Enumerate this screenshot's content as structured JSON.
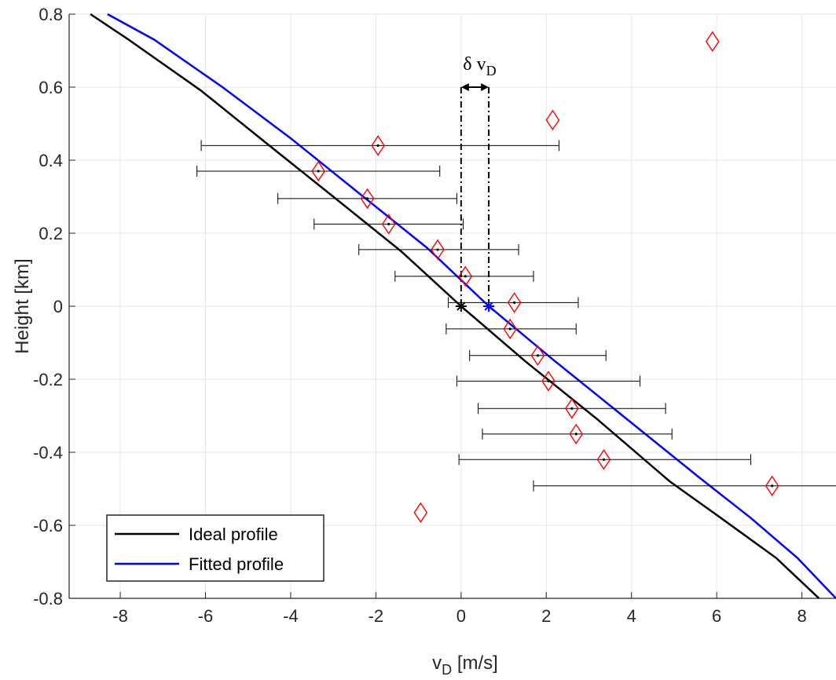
{
  "chart_data": {
    "type": "scatter",
    "xlabel": "v",
    "xlabel_sub": "D",
    "xlabel_unit": " [m/s]",
    "ylabel": "Height [km]",
    "xlim": [
      -9.2,
      8.8
    ],
    "ylim": [
      -0.8,
      0.8
    ],
    "xticks": [
      -8,
      -6,
      -4,
      -2,
      0,
      2,
      4,
      6,
      8
    ],
    "yticks": [
      -0.8,
      -0.6,
      -0.4,
      -0.2,
      0,
      0.2,
      0.4,
      0.6,
      0.8
    ],
    "grid": true,
    "legend_position": "bottom-left",
    "colors": {
      "ideal": "#000000",
      "fitted": "#0000ff",
      "marker": "#ff0000",
      "errorbar": "#000000",
      "grid": "#e6e6e6"
    },
    "series": [
      {
        "name": "Ideal profile",
        "x": [
          -8.7,
          -7.8,
          -6.1,
          -4.5,
          -3.0,
          -1.4,
          0.0,
          1.5,
          3.2,
          4.9,
          6.1,
          7.4,
          8.4
        ],
        "y": [
          0.8,
          0.73,
          0.59,
          0.44,
          0.3,
          0.15,
          0.0,
          -0.15,
          -0.31,
          -0.48,
          -0.58,
          -0.69,
          -0.8
        ]
      },
      {
        "name": "Fitted profile",
        "x": [
          -8.3,
          -7.2,
          -5.6,
          -4.0,
          -2.4,
          -0.8,
          0.65,
          2.2,
          3.9,
          5.6,
          6.8,
          7.9,
          8.8
        ],
        "y": [
          0.8,
          0.73,
          0.6,
          0.46,
          0.31,
          0.16,
          0.0,
          -0.15,
          -0.31,
          -0.47,
          -0.58,
          -0.69,
          -0.8
        ]
      }
    ],
    "measurements": [
      {
        "x": -1.95,
        "y": 0.44,
        "xerr_low": -6.1,
        "xerr_high": 2.3
      },
      {
        "x": -3.35,
        "y": 0.37,
        "xerr_low": -6.2,
        "xerr_high": -0.5
      },
      {
        "x": -2.2,
        "y": 0.295,
        "xerr_low": -4.3,
        "xerr_high": -0.1
      },
      {
        "x": -1.7,
        "y": 0.225,
        "xerr_low": -3.45,
        "xerr_high": 0.05
      },
      {
        "x": -0.55,
        "y": 0.155,
        "xerr_low": -2.4,
        "xerr_high": 1.35
      },
      {
        "x": 0.1,
        "y": 0.082,
        "xerr_low": -1.55,
        "xerr_high": 1.7
      },
      {
        "x": 1.25,
        "y": 0.01,
        "xerr_low": -0.3,
        "xerr_high": 2.75
      },
      {
        "x": 1.15,
        "y": -0.062,
        "xerr_low": -0.35,
        "xerr_high": 2.7
      },
      {
        "x": 1.8,
        "y": -0.135,
        "xerr_low": 0.2,
        "xerr_high": 3.4
      },
      {
        "x": 2.05,
        "y": -0.205,
        "xerr_low": -0.1,
        "xerr_high": 4.2
      },
      {
        "x": 2.6,
        "y": -0.28,
        "xerr_low": 0.4,
        "xerr_high": 4.8
      },
      {
        "x": 2.7,
        "y": -0.35,
        "xerr_low": 0.5,
        "xerr_high": 4.95
      },
      {
        "x": 3.35,
        "y": -0.42,
        "xerr_low": -0.05,
        "xerr_high": 6.8
      },
      {
        "x": 7.3,
        "y": -0.492,
        "xerr_low": 1.7,
        "xerr_high": 8.8
      }
    ],
    "outliers": [
      {
        "x": 5.9,
        "y": 0.725
      },
      {
        "x": 2.15,
        "y": 0.51
      },
      {
        "x": -0.95,
        "y": -0.565
      }
    ],
    "reference_points": [
      {
        "x": 0.0,
        "y": 0.0,
        "color": "#000000"
      },
      {
        "x": 0.65,
        "y": 0.0,
        "color": "#0000ff"
      }
    ],
    "annotation": {
      "symbol": "δ v",
      "subscript": "D",
      "x_from": 0.0,
      "x_to": 0.65,
      "arrow_y": 0.6
    }
  }
}
